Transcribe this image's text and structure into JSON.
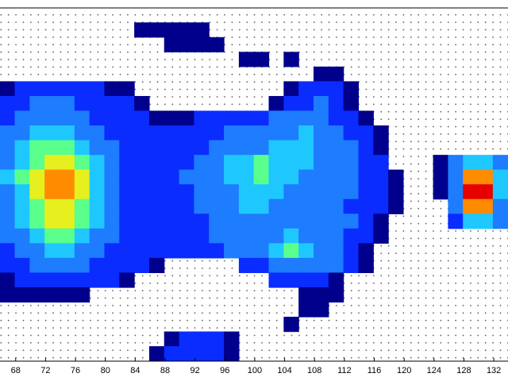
{
  "chart_data": {
    "type": "heatmap",
    "xlim": [
      65.9,
      133.9
    ],
    "xticks": [
      68,
      72,
      76,
      80,
      84,
      88,
      92,
      96,
      100,
      104,
      108,
      112,
      116,
      120,
      124,
      128,
      132
    ],
    "colorscale": [
      "#00008c",
      "#0a2cff",
      "#1e7cff",
      "#1ec8ff",
      "#5aff8c",
      "#e6f01e",
      "#ff8c00",
      "#e60000"
    ],
    "z": [
      [
        null,
        null,
        null,
        null,
        null,
        null,
        null,
        null,
        null,
        null,
        null,
        null,
        null,
        null,
        null,
        null,
        null,
        null,
        null,
        null,
        null,
        null,
        null,
        null,
        null,
        null,
        null,
        null,
        null,
        null,
        null,
        null,
        null,
        null
      ],
      [
        null,
        null,
        null,
        null,
        null,
        null,
        null,
        null,
        null,
        1,
        1,
        1,
        1,
        1,
        null,
        null,
        null,
        null,
        null,
        null,
        null,
        null,
        null,
        null,
        null,
        null,
        null,
        null,
        null,
        null,
        null,
        null,
        null,
        null
      ],
      [
        null,
        null,
        null,
        null,
        null,
        null,
        null,
        null,
        null,
        null,
        null,
        1,
        1,
        1,
        1,
        null,
        null,
        null,
        null,
        null,
        null,
        null,
        null,
        null,
        null,
        null,
        null,
        null,
        null,
        null,
        null,
        null,
        null,
        null
      ],
      [
        null,
        null,
        null,
        null,
        null,
        null,
        null,
        null,
        null,
        null,
        null,
        null,
        null,
        null,
        null,
        null,
        1,
        1,
        null,
        1,
        null,
        null,
        null,
        null,
        null,
        null,
        null,
        null,
        null,
        null,
        null,
        null,
        null,
        null
      ],
      [
        null,
        null,
        null,
        null,
        null,
        null,
        null,
        null,
        null,
        null,
        null,
        null,
        null,
        null,
        null,
        null,
        null,
        null,
        null,
        null,
        null,
        1,
        1,
        null,
        null,
        null,
        null,
        null,
        null,
        null,
        null,
        null,
        null,
        null
      ],
      [
        1,
        2,
        2,
        2,
        2,
        2,
        2,
        1,
        1,
        null,
        null,
        null,
        null,
        null,
        null,
        null,
        null,
        null,
        null,
        1,
        2,
        2,
        2,
        1,
        null,
        null,
        null,
        null,
        null,
        null,
        null,
        null,
        null,
        null
      ],
      [
        2,
        2,
        3,
        3,
        3,
        2,
        2,
        2,
        2,
        1,
        null,
        null,
        null,
        null,
        null,
        null,
        null,
        null,
        1,
        2,
        2,
        3,
        2,
        1,
        null,
        null,
        null,
        null,
        null,
        null,
        null,
        null,
        null,
        null
      ],
      [
        2,
        3,
        3,
        3,
        3,
        3,
        2,
        2,
        2,
        2,
        1,
        1,
        1,
        2,
        2,
        2,
        2,
        2,
        3,
        3,
        3,
        3,
        2,
        2,
        1,
        null,
        null,
        null,
        null,
        null,
        null,
        null,
        null,
        null
      ],
      [
        3,
        3,
        4,
        4,
        4,
        3,
        3,
        2,
        2,
        2,
        2,
        2,
        2,
        2,
        2,
        3,
        3,
        3,
        3,
        3,
        4,
        3,
        3,
        2,
        2,
        1,
        null,
        null,
        null,
        null,
        null,
        null,
        null,
        null
      ],
      [
        3,
        4,
        5,
        5,
        5,
        4,
        3,
        3,
        2,
        2,
        2,
        2,
        2,
        2,
        3,
        3,
        3,
        3,
        4,
        4,
        4,
        3,
        3,
        3,
        2,
        1,
        null,
        null,
        null,
        null,
        null,
        null,
        null,
        null
      ],
      [
        3,
        4,
        5,
        6,
        6,
        5,
        4,
        3,
        2,
        2,
        2,
        2,
        2,
        3,
        3,
        4,
        4,
        5,
        4,
        4,
        4,
        3,
        3,
        3,
        2,
        2,
        null,
        null,
        null,
        1,
        3,
        4,
        4,
        3
      ],
      [
        4,
        5,
        6,
        7,
        7,
        6,
        4,
        3,
        2,
        2,
        2,
        2,
        3,
        3,
        3,
        4,
        4,
        5,
        4,
        4,
        3,
        3,
        3,
        3,
        2,
        2,
        1,
        null,
        null,
        1,
        3,
        7,
        7,
        4
      ],
      [
        3,
        4,
        6,
        7,
        7,
        6,
        4,
        3,
        2,
        2,
        2,
        2,
        2,
        3,
        3,
        3,
        4,
        4,
        4,
        3,
        3,
        3,
        3,
        3,
        2,
        2,
        1,
        null,
        null,
        1,
        3,
        8,
        8,
        4
      ],
      [
        3,
        4,
        5,
        6,
        6,
        5,
        4,
        3,
        2,
        2,
        2,
        2,
        2,
        3,
        3,
        3,
        4,
        4,
        3,
        3,
        3,
        3,
        3,
        2,
        2,
        2,
        1,
        null,
        null,
        null,
        3,
        7,
        7,
        3
      ],
      [
        3,
        4,
        5,
        6,
        6,
        5,
        4,
        3,
        2,
        2,
        2,
        2,
        2,
        2,
        3,
        3,
        3,
        3,
        3,
        3,
        3,
        3,
        3,
        3,
        2,
        1,
        null,
        null,
        null,
        null,
        2,
        4,
        4,
        3
      ],
      [
        3,
        3,
        4,
        5,
        5,
        4,
        3,
        3,
        2,
        2,
        2,
        2,
        2,
        2,
        3,
        3,
        3,
        3,
        3,
        4,
        3,
        3,
        3,
        2,
        2,
        1,
        null,
        null,
        null,
        null,
        null,
        null,
        null,
        null
      ],
      [
        2,
        3,
        3,
        4,
        4,
        3,
        3,
        2,
        2,
        2,
        2,
        2,
        2,
        2,
        2,
        3,
        3,
        3,
        4,
        5,
        4,
        3,
        3,
        2,
        1,
        null,
        null,
        null,
        null,
        null,
        null,
        null,
        null,
        null
      ],
      [
        2,
        2,
        3,
        3,
        3,
        3,
        2,
        2,
        2,
        2,
        1,
        null,
        null,
        null,
        null,
        null,
        2,
        2,
        3,
        3,
        3,
        3,
        3,
        2,
        1,
        null,
        null,
        null,
        null,
        null,
        null,
        null,
        null,
        null
      ],
      [
        1,
        2,
        2,
        2,
        2,
        2,
        2,
        2,
        1,
        null,
        null,
        null,
        null,
        null,
        null,
        null,
        null,
        null,
        2,
        2,
        2,
        2,
        1,
        null,
        null,
        null,
        null,
        null,
        null,
        null,
        null,
        null,
        null,
        null
      ],
      [
        1,
        1,
        1,
        1,
        1,
        1,
        null,
        null,
        null,
        null,
        null,
        null,
        null,
        null,
        null,
        null,
        null,
        null,
        null,
        null,
        1,
        1,
        1,
        null,
        null,
        null,
        null,
        null,
        null,
        null,
        null,
        null,
        null,
        null
      ],
      [
        null,
        null,
        null,
        null,
        null,
        null,
        null,
        null,
        null,
        null,
        null,
        null,
        null,
        null,
        null,
        null,
        null,
        null,
        null,
        null,
        1,
        1,
        null,
        null,
        null,
        null,
        null,
        null,
        null,
        null,
        null,
        null,
        null,
        null
      ],
      [
        null,
        null,
        null,
        null,
        null,
        null,
        null,
        null,
        null,
        null,
        null,
        null,
        null,
        null,
        null,
        null,
        null,
        null,
        null,
        1,
        null,
        null,
        null,
        null,
        null,
        null,
        null,
        null,
        null,
        null,
        null,
        null,
        null,
        null
      ],
      [
        null,
        null,
        null,
        null,
        null,
        null,
        null,
        null,
        null,
        null,
        null,
        1,
        2,
        2,
        2,
        1,
        null,
        null,
        null,
        null,
        null,
        null,
        null,
        null,
        null,
        null,
        null,
        null,
        null,
        null,
        null,
        null,
        null,
        null
      ],
      [
        null,
        null,
        null,
        null,
        null,
        null,
        null,
        null,
        null,
        null,
        1,
        2,
        2,
        2,
        2,
        1,
        null,
        null,
        null,
        null,
        null,
        null,
        null,
        null,
        null,
        null,
        null,
        null,
        null,
        null,
        null,
        null,
        null,
        null
      ]
    ]
  }
}
